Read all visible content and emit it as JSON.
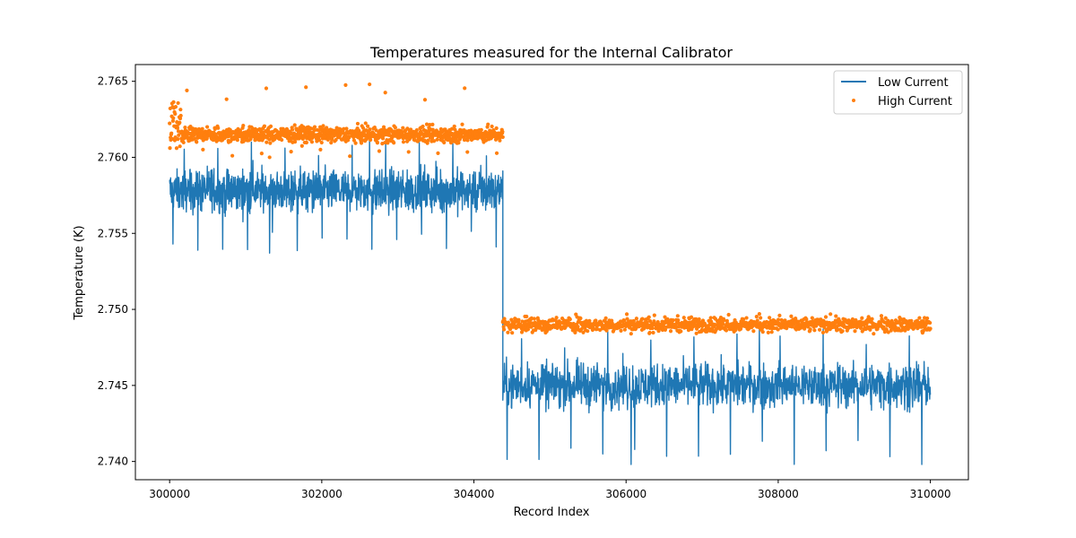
{
  "chart_data": {
    "type": "line",
    "title": "Temperatures measured for the Internal Calibrator",
    "xlabel": "Record Index",
    "ylabel": "Temperature (K)",
    "xlim": [
      299550,
      310500
    ],
    "ylim": [
      2.7388,
      2.7661
    ],
    "xticks": [
      300000,
      302000,
      304000,
      306000,
      308000,
      310000
    ],
    "yticks": [
      2.74,
      2.745,
      2.75,
      2.755,
      2.76,
      2.765
    ],
    "xtick_labels": [
      "300000",
      "302000",
      "304000",
      "306000",
      "308000",
      "310000"
    ],
    "ytick_labels": [
      "2.740",
      "2.745",
      "2.750",
      "2.755",
      "2.760",
      "2.765"
    ],
    "grid": false,
    "legend_position": "top-right",
    "x_range": [
      300000,
      310000
    ],
    "step_x": 304380,
    "series": [
      {
        "name": "Low Current",
        "style": "line",
        "color": "#1f77b4",
        "segments": [
          {
            "x_start": 300000,
            "x_end": 304380,
            "mean": 2.7578,
            "typical_low": 2.7565,
            "typical_high": 2.759,
            "min": 2.7537,
            "max": 2.7613
          },
          {
            "x_start": 304380,
            "x_end": 310000,
            "mean": 2.745,
            "typical_low": 2.7437,
            "typical_high": 2.7463,
            "min": 2.7398,
            "max": 2.7487
          }
        ]
      },
      {
        "name": "High Current",
        "style": "scatter",
        "color": "#ff7f0e",
        "segments": [
          {
            "x_start": 300000,
            "x_end": 304380,
            "mean": 2.7615,
            "typical_low": 2.7611,
            "typical_high": 2.762,
            "min": 2.76,
            "max": 2.7648
          },
          {
            "x_start": 304380,
            "x_end": 310000,
            "mean": 2.749,
            "typical_low": 2.7486,
            "typical_high": 2.7494,
            "min": 2.7484,
            "max": 2.7497
          }
        ]
      }
    ]
  }
}
